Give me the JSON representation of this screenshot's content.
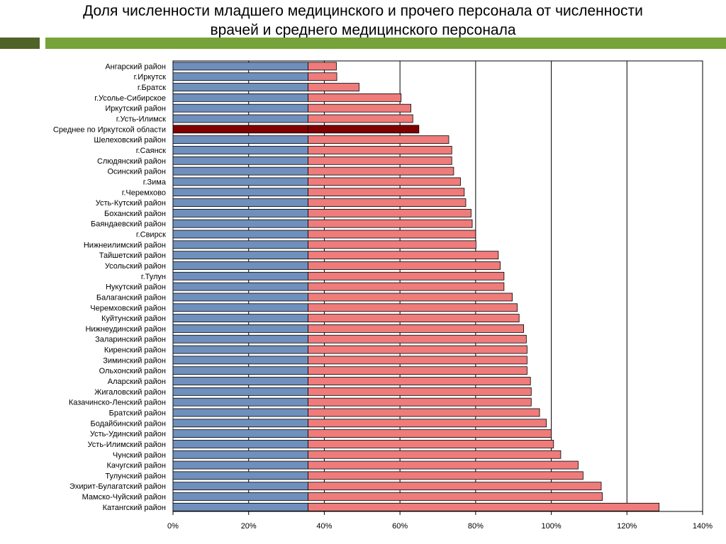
{
  "title": {
    "line1": "Доля численности младшего медицинского и прочего персонала от численности",
    "line2": "врачей и среднего медицинского персонала"
  },
  "colors": {
    "band_dark": "#4f6228",
    "band_light": "#77a33a",
    "bar_base": "#6f8fbd",
    "bar_value": "#ef7b7b",
    "bar_highlight": "#800000",
    "gridline": "#000000"
  },
  "chart_data": {
    "type": "bar",
    "orientation": "horizontal",
    "stacked": true,
    "xlim": [
      0,
      140
    ],
    "x_ticks": [
      "0%",
      "20%",
      "40%",
      "60%",
      "80%",
      "100%",
      "120%",
      "140%"
    ],
    "x_tick_values": [
      0,
      20,
      40,
      60,
      80,
      100,
      120,
      140
    ],
    "grid": "vertical",
    "legend": "none",
    "base_value": 35.7,
    "highlight_category": "Среднее по Иркутской области",
    "categories": [
      "Ангарский район",
      "г.Иркутск",
      "г.Братск",
      "г.Усолье-Сибирское",
      "Иркутский район",
      "г.Усть-Илимск",
      "Среднее по Иркутской области",
      "Шелеховский район",
      "г.Саянск",
      "Слюдянский район",
      "Осинский район",
      "г.Зима",
      "г.Черемхово",
      "Усть-Кутский район",
      "Боханский район",
      "Баяндаевский район",
      "г.Свирск",
      "Нижнеилимский район",
      "Тайшетский район",
      "Усольский район",
      "г.Тулун",
      "Нукутский район",
      "Балаганский район",
      "Черемховский район",
      "Куйтунский район",
      "Нижнеудинский район",
      "Заларинский район",
      "Киренский район",
      "Зиминский район",
      "Ольхонский район",
      "Аларский район",
      "Жигаловский район",
      "Казачинско-Ленский район",
      "Братский район",
      "Бодайбинский район",
      "Усть-Удинский район",
      "Усть-Илимский район",
      "Чунский район",
      "Качугский район",
      "Тулунский район",
      "Эхирит-Булагатский район",
      "Мамско-Чуйский район",
      "Катангский район"
    ],
    "values": [
      43.2,
      43.3,
      49.2,
      60.3,
      62.9,
      63.4,
      65.0,
      72.9,
      73.7,
      73.7,
      74.2,
      76.0,
      77.0,
      77.4,
      78.8,
      79.1,
      80.0,
      80.1,
      86.0,
      86.5,
      87.5,
      87.5,
      89.7,
      91.0,
      91.5,
      92.7,
      93.4,
      93.6,
      93.6,
      93.6,
      94.5,
      94.7,
      94.7,
      96.9,
      98.7,
      100.0,
      100.6,
      102.5,
      107.1,
      108.4,
      113.2,
      113.5,
      128.5
    ]
  }
}
